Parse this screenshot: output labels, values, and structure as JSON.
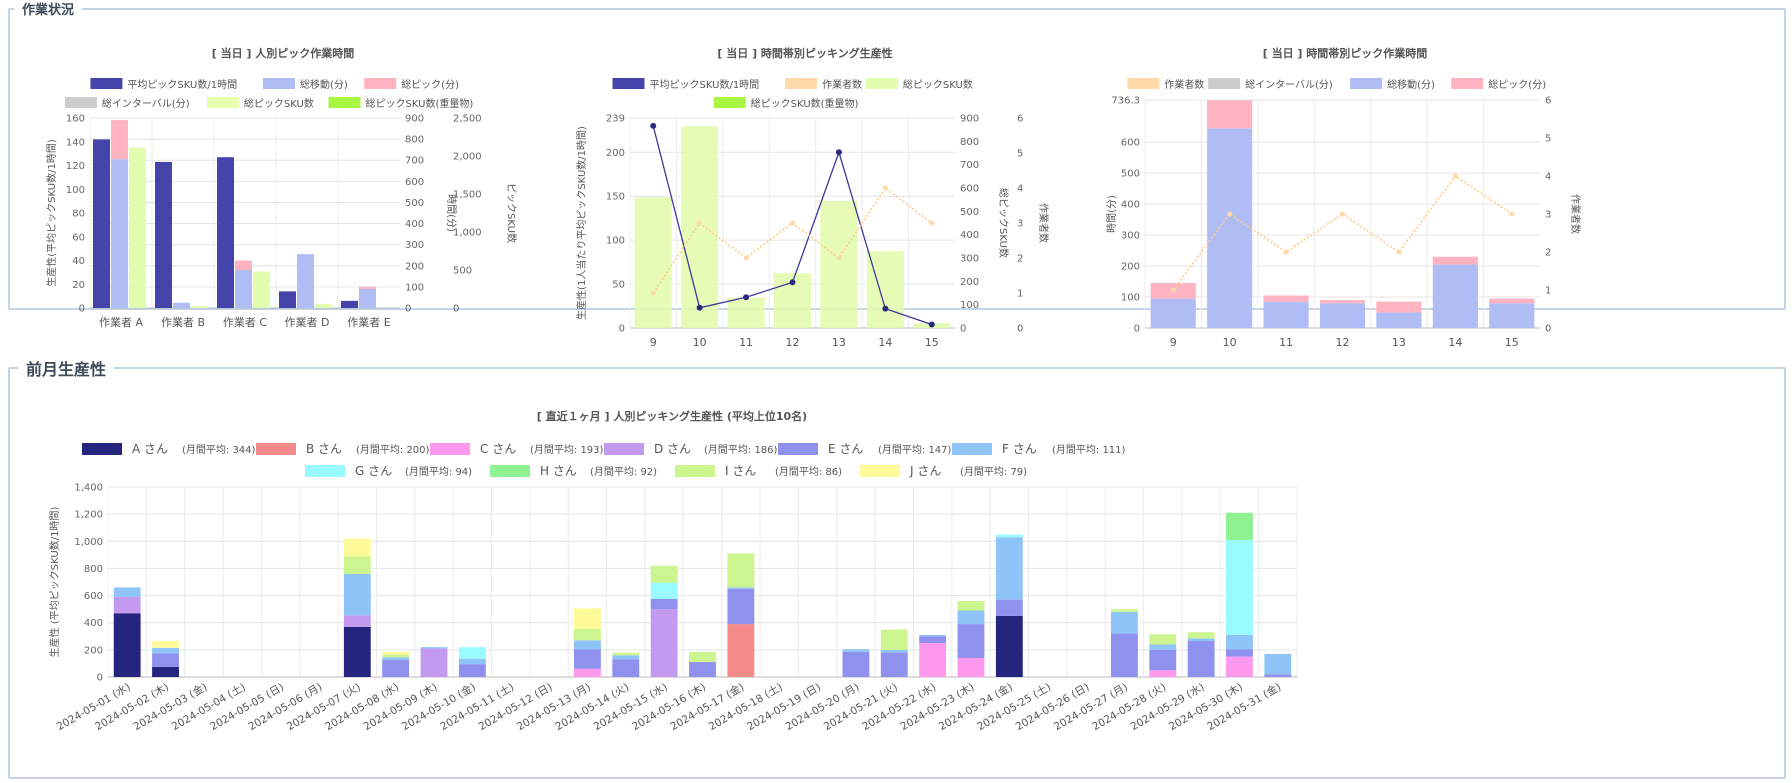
{
  "sections": {
    "work_status": "作業状況",
    "last_month": "前月生産性"
  },
  "chart_data": [
    {
      "type": "bar",
      "title": "[ 当日 ] 人別ピック作業時間",
      "categories": [
        "作業者 A",
        "作業者 B",
        "作業者 C",
        "作業者 D",
        "作業者 E"
      ],
      "y1_label": "生産性(平均ピックSKU数/1時間)",
      "y2_label": "時間(分)",
      "y3_label": "ピックSKU数",
      "y1_ticks": [
        "0",
        "20",
        "40",
        "60",
        "80",
        "100",
        "120",
        "140",
        "160"
      ],
      "y2_ticks": [
        "0",
        "100",
        "200",
        "300",
        "400",
        "500",
        "600",
        "700",
        "800",
        "900"
      ],
      "y3_ticks": [
        "0",
        "500",
        "1,000",
        "1,500",
        "2,000",
        "2,500"
      ],
      "ylim_y1": [
        0,
        160
      ],
      "ylim_y2": [
        0,
        900
      ],
      "ylim_y3": [
        0,
        2500
      ],
      "legend": [
        {
          "name": "平均ピックSKU数/1時間",
          "color": "#4444aa"
        },
        {
          "name": "総移動(分)",
          "color": "#b0bdf5"
        },
        {
          "name": "総ピック(分)",
          "color": "#ffb3c1"
        },
        {
          "name": "総インターバル(分)",
          "color": "#cccccc"
        },
        {
          "name": "総ピックSKU数",
          "color": "#e8ffb0"
        },
        {
          "name": "総ピックSKU数(重量物)",
          "color": "#a8f542"
        }
      ],
      "series": [
        {
          "name": "平均ピックSKU数/1時間",
          "axis": "y1",
          "values": [
            142,
            123,
            127,
            14,
            6
          ]
        },
        {
          "name": "総移動(分)",
          "axis": "y2",
          "stack": "time",
          "values": [
            705,
            25,
            180,
            255,
            90
          ]
        },
        {
          "name": "総ピック(分)",
          "axis": "y2",
          "stack": "time",
          "values": [
            185,
            0,
            45,
            0,
            10
          ]
        },
        {
          "name": "総インターバル(分)",
          "axis": "y2",
          "stack": "time",
          "values": [
            0,
            0,
            0,
            0,
            0
          ]
        },
        {
          "name": "総ピックSKU数",
          "axis": "y3",
          "stack": "sku",
          "values": [
            2110,
            25,
            480,
            55,
            0
          ]
        },
        {
          "name": "総ピックSKU数(重量物)",
          "axis": "y3",
          "stack": "sku",
          "values": [
            0,
            0,
            0,
            0,
            0
          ]
        }
      ]
    },
    {
      "type": "bar",
      "title": "[ 当日 ] 時間帯別ピッキング生産性",
      "categories": [
        "9",
        "10",
        "11",
        "12",
        "13",
        "14",
        "15"
      ],
      "y1_label": "生産性(1人当たり平均ピックSKU数/1時間)",
      "y2_label": "総ピックSKU数",
      "y3_label": "作業者数",
      "y1_ticks": [
        "0",
        "50",
        "100",
        "150",
        "200",
        "239"
      ],
      "y2_ticks": [
        "0",
        "100",
        "200",
        "300",
        "400",
        "500",
        "600",
        "700",
        "800",
        "900"
      ],
      "y3_ticks": [
        "0",
        "1",
        "2",
        "3",
        "4",
        "5",
        "6"
      ],
      "ylim_y1": [
        0,
        239
      ],
      "ylim_y2": [
        0,
        900
      ],
      "ylim_y3": [
        0,
        6
      ],
      "legend": [
        {
          "name": "平均ピックSKU数/1時間",
          "color": "#4444aa"
        },
        {
          "name": "作業者数",
          "color": "#ffd9a8"
        },
        {
          "name": "総ピックSKU数",
          "color": "#e3fcae"
        },
        {
          "name": "総ピックSKU数(重量物)",
          "color": "#a8f542"
        }
      ],
      "series": [
        {
          "name": "平均ピックSKU数/1時間",
          "axis": "y1",
          "type": "line",
          "values": [
            230,
            23,
            35,
            52,
            200,
            22,
            4
          ]
        },
        {
          "name": "作業者数",
          "axis": "y3",
          "type": "line",
          "values": [
            1,
            3,
            2,
            3,
            2,
            4,
            3
          ]
        },
        {
          "name": "総ピックSKU数",
          "axis": "y2",
          "values": [
            560,
            865,
            130,
            235,
            545,
            330,
            20
          ]
        },
        {
          "name": "総ピックSKU数(重量物)",
          "axis": "y2",
          "values": [
            0,
            0,
            0,
            0,
            0,
            0,
            0
          ]
        }
      ]
    },
    {
      "type": "bar",
      "title": "[ 当日 ] 時間帯別ピック作業時間",
      "categories": [
        "9",
        "10",
        "11",
        "12",
        "13",
        "14",
        "15"
      ],
      "y1_label": "時間(分)",
      "y2_label": "作業者数",
      "y1_ticks": [
        "0",
        "100",
        "200",
        "300",
        "400",
        "500",
        "600",
        "736.3"
      ],
      "y2_ticks": [
        "0",
        "1",
        "2",
        "3",
        "4",
        "5",
        "6"
      ],
      "ylim_y1": [
        0,
        736.3
      ],
      "ylim_y2": [
        0,
        6
      ],
      "legend": [
        {
          "name": "作業者数",
          "color": "#ffd9a8"
        },
        {
          "name": "総インターバル(分)",
          "color": "#cccccc"
        },
        {
          "name": "総移動(分)",
          "color": "#b0bdf5"
        },
        {
          "name": "総ピック(分)",
          "color": "#ffb3c1"
        }
      ],
      "series": [
        {
          "name": "作業者数",
          "axis": "y2",
          "type": "line",
          "values": [
            1,
            3,
            2,
            3,
            2,
            4,
            3
          ]
        },
        {
          "name": "総インターバル(分)",
          "axis": "y1",
          "stack": "t",
          "values": [
            0,
            0,
            0,
            0,
            0,
            0,
            0
          ]
        },
        {
          "name": "総移動(分)",
          "axis": "y1",
          "stack": "t",
          "values": [
            95,
            645,
            85,
            80,
            50,
            205,
            80
          ]
        },
        {
          "name": "総ピック(分)",
          "axis": "y1",
          "stack": "t",
          "values": [
            50,
            90,
            20,
            10,
            35,
            25,
            15
          ]
        }
      ]
    },
    {
      "type": "bar",
      "title": "[ 直近１ヶ月 ] 人別ピッキング生産性 (平均上位10名)",
      "ylabel": "生産性 (平均ピックSKU数/1時間)",
      "ylim": [
        0,
        1400
      ],
      "y_ticks": [
        "0",
        "200",
        "400",
        "600",
        "800",
        "1,000",
        "1,200",
        "1,400"
      ],
      "categories": [
        "2024-05-01 (水)",
        "2024-05-02 (木)",
        "2024-05-03 (金)",
        "2024-05-04 (土)",
        "2024-05-05 (日)",
        "2024-05-06 (月)",
        "2024-05-07 (火)",
        "2024-05-08 (水)",
        "2024-05-09 (木)",
        "2024-05-10 (金)",
        "2024-05-11 (土)",
        "2024-05-12 (日)",
        "2024-05-13 (月)",
        "2024-05-14 (火)",
        "2024-05-15 (水)",
        "2024-05-16 (木)",
        "2024-05-17 (金)",
        "2024-05-18 (土)",
        "2024-05-19 (日)",
        "2024-05-20 (月)",
        "2024-05-21 (火)",
        "2024-05-22 (水)",
        "2024-05-23 (木)",
        "2024-05-24 (金)",
        "2024-05-25 (土)",
        "2024-05-26 (日)",
        "2024-05-27 (月)",
        "2024-05-28 (火)",
        "2024-05-29 (水)",
        "2024-05-30 (木)",
        "2024-05-31 (金)"
      ],
      "series": [
        {
          "name": "A さん",
          "avg": "(月間平均: 344)",
          "color": "#252580",
          "values": [
            470,
            75,
            0,
            0,
            0,
            0,
            370,
            0,
            0,
            0,
            0,
            0,
            0,
            0,
            0,
            0,
            0,
            0,
            0,
            0,
            0,
            0,
            0,
            450,
            0,
            0,
            0,
            0,
            0,
            0,
            0
          ]
        },
        {
          "name": "B さん",
          "avg": "(月間平均: 200)",
          "color": "#f48a8a",
          "values": [
            0,
            0,
            0,
            0,
            0,
            0,
            0,
            0,
            0,
            0,
            0,
            0,
            0,
            0,
            0,
            0,
            390,
            0,
            0,
            0,
            0,
            0,
            0,
            0,
            0,
            0,
            0,
            0,
            0,
            0,
            0
          ]
        },
        {
          "name": "C さん",
          "avg": "(月間平均: 193)",
          "color": "#ff99ee",
          "values": [
            0,
            0,
            0,
            0,
            0,
            0,
            0,
            0,
            0,
            0,
            0,
            0,
            60,
            0,
            0,
            0,
            0,
            0,
            0,
            0,
            0,
            250,
            140,
            0,
            0,
            0,
            0,
            50,
            0,
            150,
            0
          ]
        },
        {
          "name": "D さん",
          "avg": "(月間平均: 186)",
          "color": "#c39af0",
          "values": [
            120,
            0,
            0,
            0,
            0,
            0,
            85,
            0,
            210,
            0,
            0,
            0,
            0,
            0,
            500,
            0,
            0,
            0,
            0,
            0,
            0,
            0,
            0,
            0,
            0,
            0,
            0,
            0,
            0,
            0,
            0
          ]
        },
        {
          "name": "E さん",
          "avg": "(月間平均: 147)",
          "color": "#8f91ee",
          "values": [
            0,
            100,
            0,
            0,
            0,
            0,
            0,
            125,
            0,
            95,
            0,
            0,
            145,
            130,
            75,
            110,
            260,
            0,
            0,
            185,
            180,
            50,
            250,
            120,
            0,
            0,
            320,
            150,
            265,
            55,
            20
          ]
        },
        {
          "name": "F さん",
          "avg": "(月間平均: 111)",
          "color": "#8fc4f8",
          "values": [
            70,
            40,
            0,
            0,
            0,
            0,
            305,
            20,
            10,
            40,
            0,
            0,
            65,
            30,
            0,
            0,
            10,
            0,
            0,
            20,
            20,
            10,
            100,
            460,
            0,
            0,
            160,
            40,
            20,
            105,
            150
          ]
        },
        {
          "name": "G さん",
          "avg": "(月間平均: 94)",
          "color": "#99faff",
          "values": [
            0,
            0,
            0,
            0,
            0,
            0,
            0,
            0,
            0,
            85,
            0,
            0,
            0,
            0,
            120,
            0,
            0,
            0,
            0,
            0,
            0,
            0,
            0,
            20,
            0,
            0,
            0,
            0,
            0,
            700,
            0
          ]
        },
        {
          "name": "H さん",
          "avg": "(月間平均: 92)",
          "color": "#8ff291",
          "values": [
            0,
            0,
            0,
            0,
            0,
            0,
            0,
            0,
            0,
            0,
            0,
            0,
            0,
            0,
            0,
            0,
            0,
            0,
            0,
            0,
            0,
            0,
            0,
            0,
            0,
            0,
            0,
            0,
            0,
            200,
            0
          ]
        },
        {
          "name": "I さん",
          "avg": "(月間平均: 86)",
          "color": "#ccf590",
          "values": [
            0,
            0,
            0,
            0,
            0,
            0,
            130,
            20,
            0,
            0,
            0,
            0,
            85,
            20,
            125,
            75,
            250,
            0,
            0,
            0,
            150,
            0,
            70,
            0,
            0,
            0,
            20,
            75,
            45,
            0,
            0
          ]
        },
        {
          "name": "J さん",
          "avg": "(月間平均: 79)",
          "color": "#fffa99",
          "values": [
            0,
            50,
            0,
            0,
            0,
            0,
            130,
            20,
            0,
            0,
            0,
            0,
            150,
            0,
            0,
            0,
            0,
            0,
            0,
            0,
            0,
            0,
            0,
            0,
            0,
            0,
            0,
            0,
            0,
            0,
            0
          ]
        }
      ]
    }
  ]
}
